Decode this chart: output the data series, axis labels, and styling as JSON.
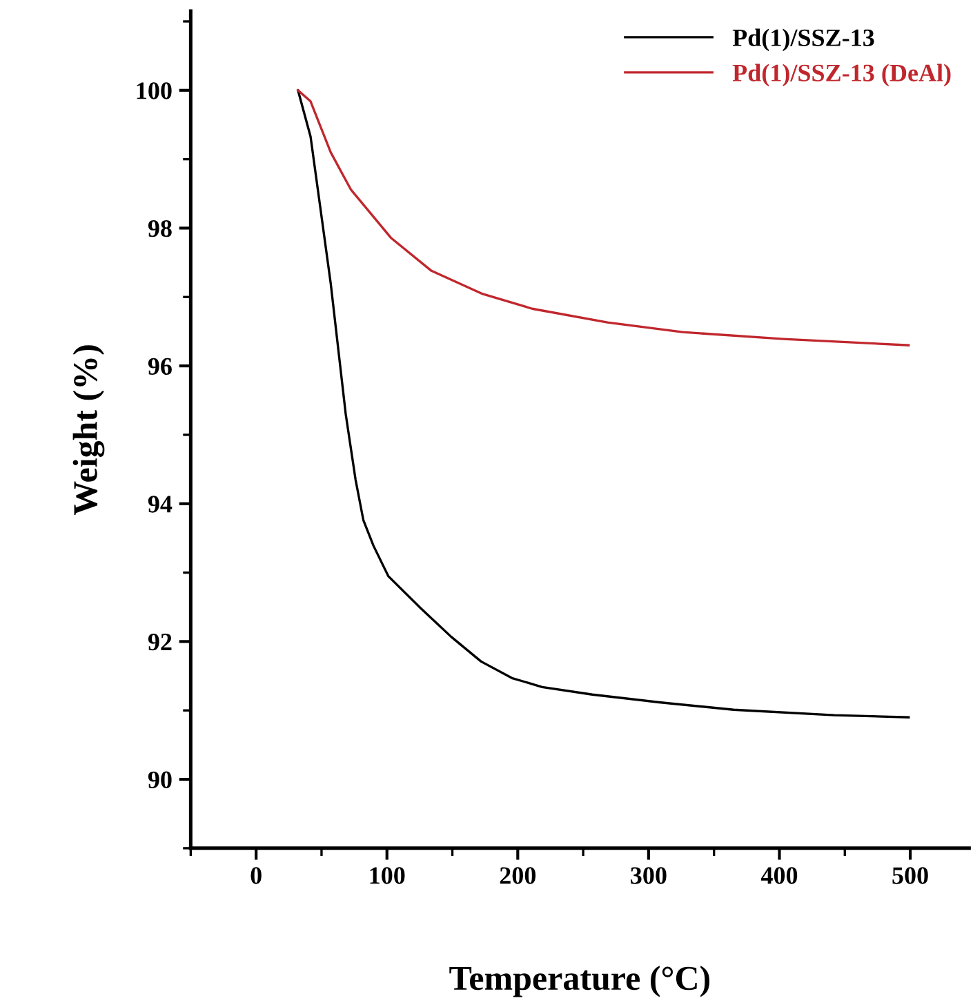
{
  "chart_data": {
    "type": "line",
    "xlabel": "Temperature (°C)",
    "ylabel": "Weight (%)",
    "xlim": [
      -50,
      545
    ],
    "xticks": [
      0,
      100,
      200,
      300,
      400,
      500
    ],
    "ylim": [
      89,
      101.15
    ],
    "yticks": [
      90,
      92,
      94,
      96,
      98,
      100
    ],
    "grid": false,
    "legend": "top right",
    "marker": "none",
    "line_style": "solid",
    "series": [
      {
        "name": "Pd(1)/SSZ-13",
        "color": "#000000",
        "x": [
          32,
          41.6,
          57,
          68.5,
          76,
          82,
          89.7,
          101,
          126,
          149,
          172,
          195.5,
          218.6,
          257,
          307,
          365,
          442,
          498.8
        ],
        "values": [
          100.0,
          99.33,
          97.2,
          95.3,
          94.35,
          93.76,
          93.39,
          92.95,
          92.48,
          92.07,
          91.71,
          91.47,
          91.34,
          91.23,
          91.12,
          91.01,
          90.93,
          90.9
        ]
      },
      {
        "name": "Pd(1)/SSZ-13 (DeAl)",
        "color": "#c0272d",
        "x": [
          32,
          41.6,
          57,
          72.4,
          103,
          134,
          172.4,
          211,
          268.6,
          326,
          403,
          498.8
        ],
        "values": [
          100.0,
          99.84,
          99.1,
          98.56,
          97.86,
          97.38,
          97.05,
          96.83,
          96.63,
          96.49,
          96.39,
          96.3
        ]
      }
    ]
  }
}
